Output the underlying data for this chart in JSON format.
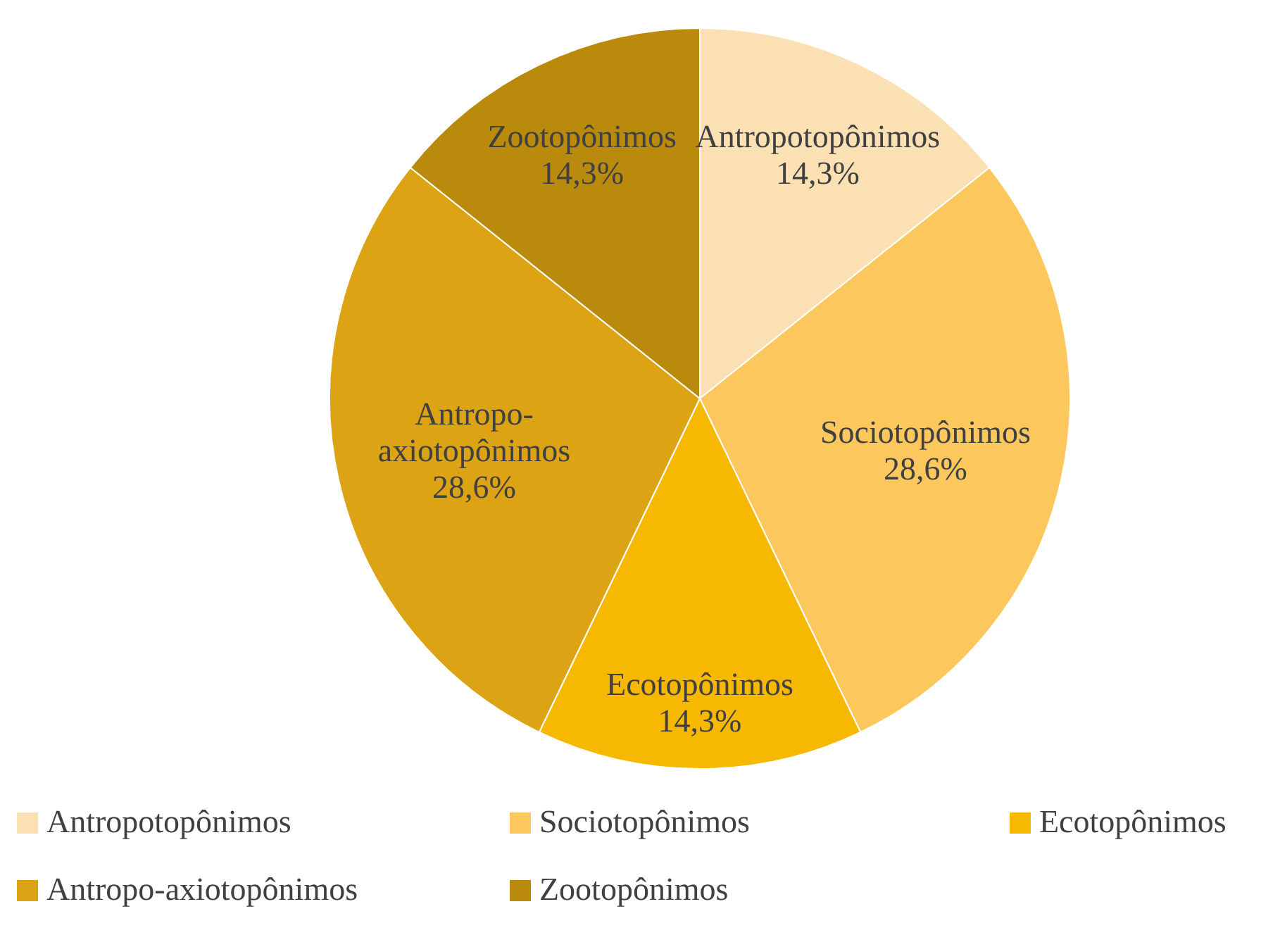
{
  "chart_data": {
    "type": "pie",
    "categories": [
      "Antropotopônimos",
      "Sociotopônimos",
      "Ecotopônimos",
      "Antropo-axiotopônimos",
      "Zootopônimos"
    ],
    "values": [
      14.3,
      28.6,
      14.3,
      28.6,
      14.3
    ],
    "colors": [
      "#fbe0b4",
      "#fcc85e",
      "#f6b800",
      "#dca414",
      "#b98a0c"
    ],
    "value_labels": [
      "14,3%",
      "28,6%",
      "14,3%",
      "28,6%",
      "14,3%"
    ],
    "legend": "bottom"
  }
}
